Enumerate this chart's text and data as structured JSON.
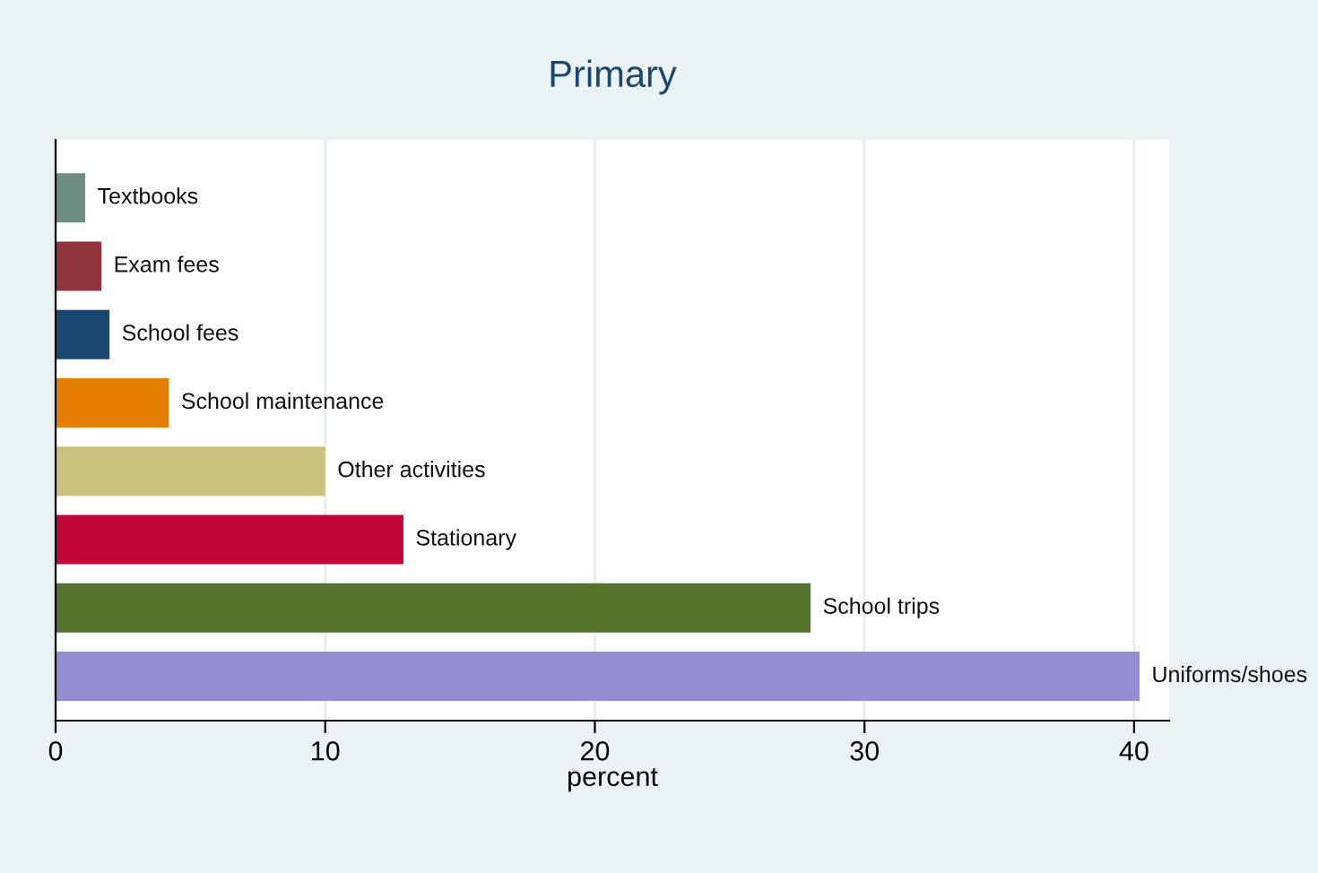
{
  "chart_data": {
    "type": "bar",
    "orientation": "horizontal",
    "title": "Primary",
    "xlabel": "percent",
    "categories": [
      "Textbooks",
      "Exam fees",
      "School fees",
      "School maintenance",
      "Other activities",
      "Stationary",
      "School trips",
      "Uniforms/shoes"
    ],
    "values": [
      1.1,
      1.7,
      2.0,
      4.2,
      10.0,
      12.9,
      28.0,
      40.2
    ],
    "colors": [
      "#6e8e84",
      "#90353b",
      "#1a476f",
      "#e37e00",
      "#cac27e",
      "#c10534",
      "#55752f",
      "#938dd2"
    ],
    "xlim": [
      0,
      41.3
    ],
    "xticks": [
      0,
      10,
      20,
      30,
      40
    ],
    "grid": "x",
    "legend": false
  }
}
